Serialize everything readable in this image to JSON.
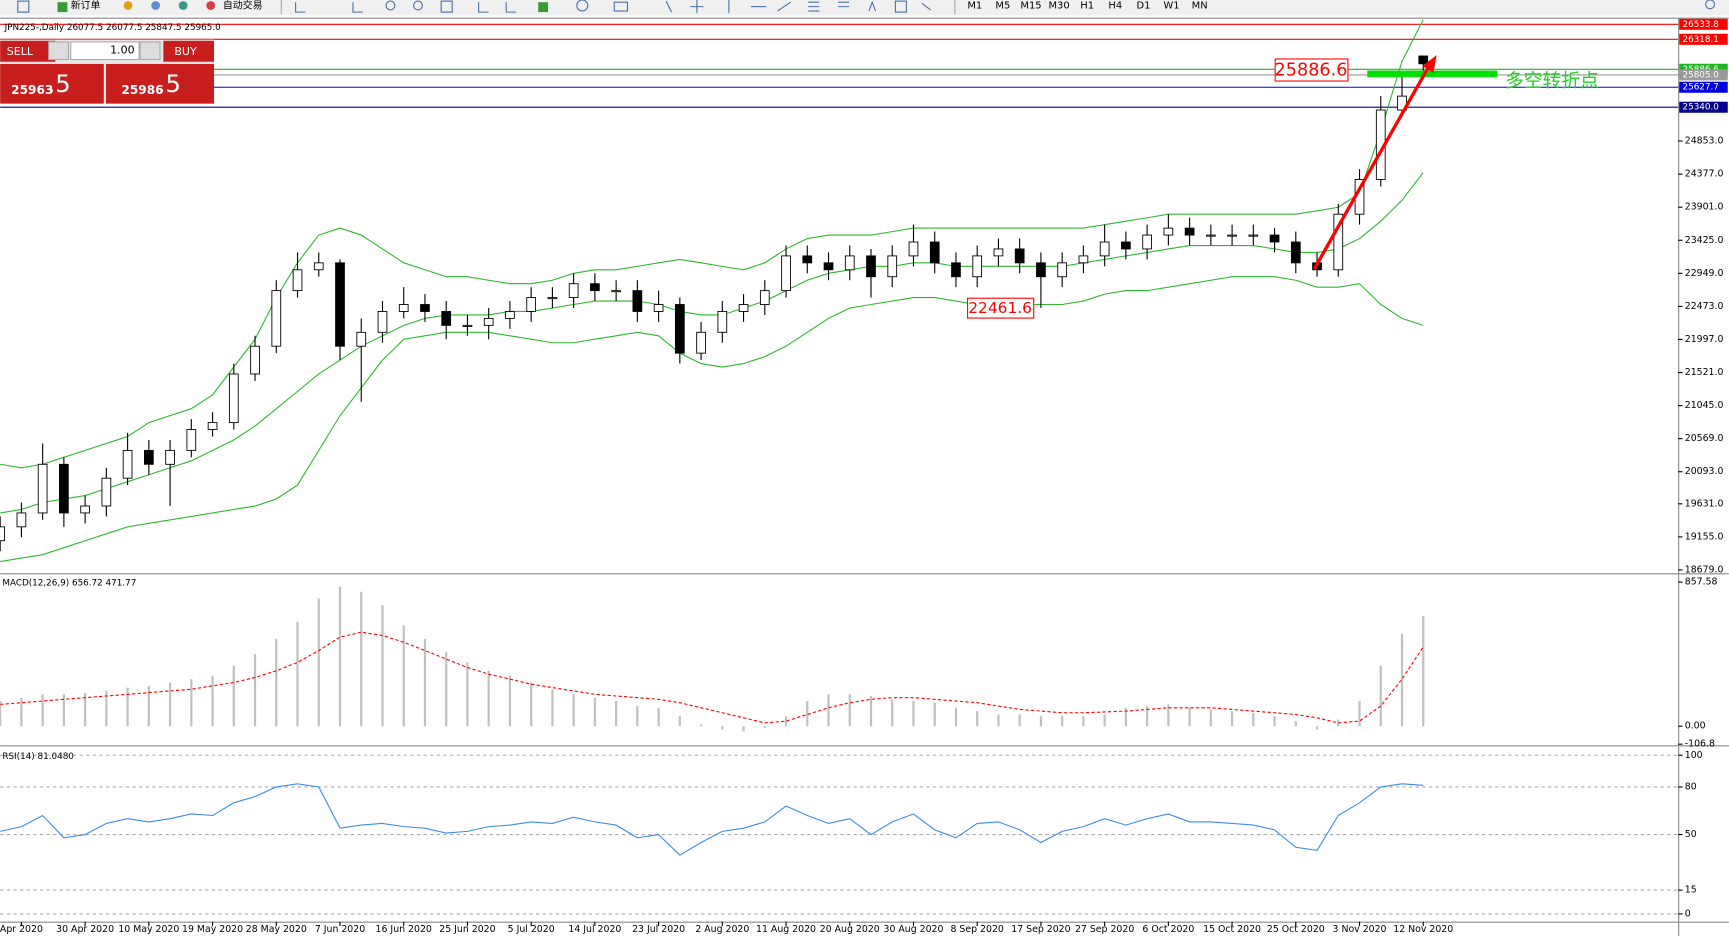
{
  "toolbar": {
    "buttons": [
      "新订单",
      "自动交易"
    ],
    "timeframes": [
      "M1",
      "M5",
      "M15",
      "M30",
      "H1",
      "H4",
      "D1",
      "W1",
      "MN"
    ]
  },
  "trade_panel": {
    "sell": "SELL",
    "buy": "BUY",
    "lot": "1.00",
    "bid_main": "25963",
    "bid_frac": ".5",
    "ask_main": "25986",
    "ask_frac": ".5"
  },
  "annotations": [
    "25886.6",
    "22461.6",
    "多空转折点"
  ],
  "chart_data": [
    {
      "type": "candlestick",
      "title": "JPN225-,Daily  26077.5 26077.5 25847.5 25965.0",
      "xlim": [
        0,
        79
      ],
      "xticks": [
        {
          "value": 1,
          "label": "Apr 2020"
        },
        {
          "value": 4,
          "label": "30 Apr 2020"
        },
        {
          "value": 7,
          "label": "10 May 2020"
        },
        {
          "value": 10,
          "label": "19 May 2020"
        },
        {
          "value": 13,
          "label": "28 May 2020"
        },
        {
          "value": 16,
          "label": "7 Jun 2020"
        },
        {
          "value": 19,
          "label": "16 Jun 2020"
        },
        {
          "value": 22,
          "label": "25 Jun 2020"
        },
        {
          "value": 25,
          "label": "5 Jul 2020"
        },
        {
          "value": 28,
          "label": "14 Jul 2020"
        },
        {
          "value": 31,
          "label": "23 Jul 2020"
        },
        {
          "value": 34,
          "label": "2 Aug 2020"
        },
        {
          "value": 37,
          "label": "11 Aug 2020"
        },
        {
          "value": 40,
          "label": "20 Aug 2020"
        },
        {
          "value": 43,
          "label": "30 Aug 2020"
        },
        {
          "value": 46,
          "label": "8 Sep 2020"
        },
        {
          "value": 49,
          "label": "17 Sep 2020"
        },
        {
          "value": 52,
          "label": "27 Sep 2020"
        },
        {
          "value": 55,
          "label": "6 Oct 2020"
        },
        {
          "value": 58,
          "label": "15 Oct 2020"
        },
        {
          "value": 61,
          "label": "25 Oct 2020"
        },
        {
          "value": 64,
          "label": "3 Nov 2020"
        },
        {
          "value": 67,
          "label": "12 Nov 2020"
        }
      ],
      "ylim": [
        18647,
        26598
      ],
      "yticks": [
        {
          "value": 18679,
          "label": "18679.0"
        },
        {
          "value": 19155,
          "label": "19155.0"
        },
        {
          "value": 19631,
          "label": "19631.0"
        },
        {
          "value": 20093,
          "label": "20093.0"
        },
        {
          "value": 20569,
          "label": "20569.0"
        },
        {
          "value": 21045,
          "label": "21045.0"
        },
        {
          "value": 21521,
          "label": "21521.0"
        },
        {
          "value": 21997,
          "label": "21997.0"
        },
        {
          "value": 22473,
          "label": "22473.0"
        },
        {
          "value": 22949,
          "label": "22949.0"
        },
        {
          "value": 23425,
          "label": "23425.0"
        },
        {
          "value": 23901,
          "label": "23901.0"
        },
        {
          "value": 24377,
          "label": "24377.0"
        },
        {
          "value": 24853,
          "label": "24853.0"
        }
      ],
      "up_color": "#ffffff",
      "down_color": "#000000",
      "band_color": "#2eb82e",
      "open": [
        19100,
        19300,
        19500,
        20200,
        19500,
        19600,
        20000,
        20400,
        20200,
        20400,
        20700,
        20800,
        21500,
        21900,
        22700,
        23000,
        23100,
        21900,
        22100,
        22400,
        22500,
        22400,
        22200,
        22200,
        22300,
        22400,
        22600,
        22600,
        22800,
        22700,
        22700,
        22400,
        22500,
        21800,
        22100,
        22400,
        22500,
        22700,
        23200,
        23100,
        23000,
        23200,
        22900,
        23200,
        23400,
        23100,
        22900,
        23200,
        23300,
        23100,
        22900,
        23100,
        23200,
        23400,
        23300,
        23500,
        23600,
        23500,
        23500,
        23500,
        23500,
        23400,
        23100,
        23000,
        23800,
        24300,
        25300,
        26077.5
      ],
      "high": [
        19450,
        19650,
        20500,
        20300,
        19750,
        20150,
        20650,
        20550,
        20550,
        20850,
        20950,
        21650,
        22050,
        22850,
        23250,
        23250,
        23150,
        22300,
        22550,
        22750,
        22650,
        22550,
        22350,
        22450,
        22550,
        22750,
        22750,
        22950,
        22950,
        22850,
        22850,
        22700,
        22600,
        22250,
        22550,
        22650,
        22850,
        23350,
        23350,
        23250,
        23350,
        23300,
        23350,
        23650,
        23550,
        23250,
        23350,
        23450,
        23450,
        23250,
        23250,
        23350,
        23650,
        23550,
        23650,
        23800,
        23750,
        23650,
        23650,
        23650,
        23600,
        23550,
        23250,
        23950,
        24450,
        25500,
        25800,
        26077.5
      ],
      "low": [
        18950,
        19150,
        19400,
        19300,
        19350,
        19450,
        19900,
        20050,
        19600,
        20300,
        20600,
        20700,
        21400,
        21800,
        22600,
        22900,
        21700,
        21100,
        21950,
        22300,
        22250,
        22000,
        22050,
        22000,
        22150,
        22250,
        22450,
        22450,
        22550,
        22550,
        22250,
        22250,
        21650,
        21700,
        21950,
        22250,
        22350,
        22600,
        22950,
        22850,
        22850,
        22600,
        22750,
        23050,
        22950,
        22750,
        22750,
        23050,
        22950,
        22450,
        22750,
        22950,
        23050,
        23150,
        23150,
        23350,
        23350,
        23350,
        23350,
        23350,
        23250,
        22950,
        22900,
        22900,
        23650,
        24200,
        25200,
        25847.5
      ],
      "close": [
        19300,
        19500,
        20200,
        19500,
        19600,
        20000,
        20400,
        20200,
        20400,
        20700,
        20800,
        21500,
        21900,
        22700,
        23000,
        23100,
        21900,
        22100,
        22400,
        22500,
        22400,
        22200,
        22200,
        22300,
        22400,
        22600,
        22600,
        22800,
        22700,
        22700,
        22400,
        22500,
        21800,
        22100,
        22400,
        22500,
        22700,
        23200,
        23100,
        23000,
        23200,
        22900,
        23200,
        23400,
        23100,
        22900,
        23200,
        23300,
        23100,
        22900,
        23100,
        23200,
        23400,
        23300,
        23500,
        23600,
        23500,
        23500,
        23500,
        23500,
        23400,
        23100,
        23000,
        23800,
        24300,
        25300,
        25500,
        25965
      ],
      "upper_band": [
        20200,
        20150,
        20200,
        20300,
        20400,
        20500,
        20600,
        20800,
        20900,
        21000,
        21200,
        21600,
        22000,
        22600,
        23100,
        23500,
        23600,
        23500,
        23300,
        23100,
        23000,
        22900,
        22900,
        22850,
        22800,
        22800,
        22850,
        22950,
        23000,
        23000,
        23050,
        23100,
        23150,
        23100,
        23050,
        23000,
        23100,
        23300,
        23450,
        23500,
        23500,
        23500,
        23550,
        23600,
        23600,
        23600,
        23600,
        23600,
        23600,
        23600,
        23600,
        23600,
        23650,
        23700,
        23750,
        23800,
        23800,
        23800,
        23800,
        23800,
        23800,
        23800,
        23850,
        23900,
        24100,
        25000,
        26000,
        26600
      ],
      "middle_band": [
        19500,
        19550,
        19650,
        19700,
        19750,
        19850,
        19950,
        20050,
        20150,
        20250,
        20400,
        20550,
        20750,
        21000,
        21250,
        21500,
        21700,
        21900,
        22050,
        22200,
        22300,
        22350,
        22350,
        22350,
        22400,
        22400,
        22450,
        22500,
        22550,
        22550,
        22550,
        22500,
        22400,
        22350,
        22350,
        22450,
        22550,
        22700,
        22850,
        22950,
        23000,
        23050,
        23050,
        23100,
        23100,
        23050,
        23050,
        23050,
        23050,
        23050,
        23050,
        23100,
        23150,
        23200,
        23250,
        23300,
        23350,
        23350,
        23350,
        23350,
        23300,
        23250,
        23250,
        23300,
        23450,
        23700,
        24000,
        24400
      ],
      "lower_band": [
        18800,
        18850,
        18900,
        19000,
        19100,
        19200,
        19300,
        19350,
        19400,
        19450,
        19500,
        19550,
        19600,
        19700,
        19900,
        20400,
        20900,
        21300,
        21700,
        22000,
        22050,
        22100,
        22100,
        22100,
        22050,
        22000,
        21950,
        21950,
        22000,
        22050,
        22100,
        22050,
        21800,
        21650,
        21600,
        21650,
        21750,
        21900,
        22100,
        22300,
        22450,
        22500,
        22550,
        22600,
        22600,
        22550,
        22500,
        22500,
        22500,
        22500,
        22500,
        22550,
        22650,
        22700,
        22700,
        22750,
        22800,
        22850,
        22900,
        22900,
        22900,
        22850,
        22750,
        22750,
        22800,
        22500,
        22300,
        22200
      ],
      "levels": [
        {
          "value": 26533.8,
          "color": "#ff0000"
        },
        {
          "value": 26318.1,
          "color": "#ff0000"
        },
        {
          "value": 25886.6,
          "color": "#22b422"
        },
        {
          "value": 25805,
          "label": "25805.0",
          "color": "#9a9a9a"
        },
        {
          "value": 25627.7,
          "color": "#0000dd"
        },
        {
          "value": 25340,
          "label": "25340.0",
          "color": "#00008b"
        }
      ]
    },
    {
      "type": "macd",
      "title": "MACD(12,26,9) 656.72 471.77",
      "ylim": [
        -106.8,
        897
      ],
      "yticks": [
        857.58,
        {
          "value": 0,
          "label": "0.00"
        },
        -106.8
      ],
      "hist_color": "#c0c0c0",
      "signal_color": "#ff0000",
      "histogram": [
        150,
        170,
        190,
        190,
        200,
        210,
        230,
        240,
        260,
        280,
        300,
        360,
        430,
        520,
        620,
        760,
        830,
        800,
        720,
        600,
        520,
        440,
        380,
        330,
        300,
        260,
        220,
        190,
        170,
        150,
        120,
        110,
        60,
        10,
        -20,
        -30,
        -10,
        60,
        150,
        190,
        190,
        180,
        160,
        150,
        140,
        110,
        90,
        70,
        70,
        60,
        60,
        60,
        70,
        110,
        120,
        130,
        110,
        100,
        90,
        80,
        60,
        30,
        -20,
        40,
        150,
        360,
        550,
        656.72
      ],
      "signal": [
        130,
        140,
        150,
        160,
        170,
        180,
        190,
        200,
        210,
        220,
        240,
        260,
        290,
        330,
        380,
        450,
        530,
        560,
        540,
        500,
        450,
        400,
        350,
        310,
        280,
        250,
        230,
        210,
        190,
        180,
        170,
        160,
        140,
        110,
        80,
        50,
        20,
        30,
        70,
        110,
        140,
        160,
        170,
        170,
        160,
        150,
        140,
        120,
        100,
        90,
        80,
        80,
        85,
        90,
        100,
        110,
        110,
        110,
        100,
        90,
        80,
        70,
        50,
        20,
        30,
        120,
        280,
        471.77
      ]
    },
    {
      "type": "rsi",
      "title": "RSI(14) 81.0480",
      "ylim": [
        -4.9,
        104.9
      ],
      "yticks": [
        0,
        15,
        50,
        80,
        100
      ],
      "grid": true,
      "color": "#3c8ce6",
      "values": [
        52,
        55,
        62,
        48,
        50,
        57,
        60,
        58,
        60,
        63,
        62,
        70,
        74,
        80,
        82,
        80,
        54,
        56,
        57,
        55,
        54,
        51,
        52,
        55,
        56,
        58,
        57,
        61,
        58,
        56,
        48,
        50,
        37,
        45,
        52,
        54,
        58,
        68,
        62,
        57,
        60,
        50,
        58,
        63,
        53,
        48,
        57,
        58,
        53,
        45,
        52,
        55,
        60,
        56,
        60,
        63,
        58,
        58,
        57,
        56,
        53,
        42,
        40,
        62,
        70,
        80,
        82,
        81.048
      ]
    }
  ]
}
